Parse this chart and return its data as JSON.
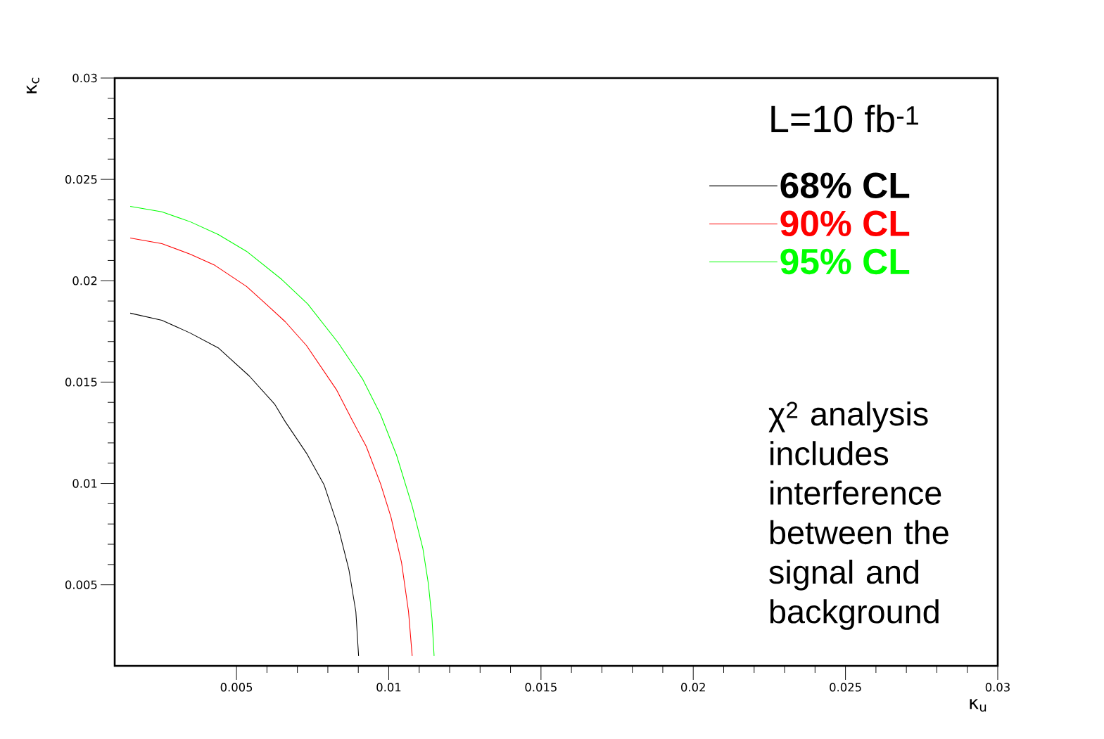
{
  "chart_data": {
    "type": "line",
    "xlabel": "κ$_{u}$",
    "ylabel": "κ$_{c}$",
    "xlim": [
      0.001,
      0.03
    ],
    "ylim": [
      0.001,
      0.03
    ],
    "xticks": [
      0.005,
      0.01,
      0.015,
      0.02,
      0.025,
      0.03
    ],
    "yticks": [
      0.005,
      0.01,
      0.015,
      0.02,
      0.025,
      0.03
    ],
    "legend": "top right",
    "marker": "none",
    "line_style": "solid",
    "annotations": [
      "L=10 fb$^{-1}$",
      "χ$^{2}$ analysis includes interference between the signal and background"
    ],
    "series": [
      {
        "name": "68% CL",
        "color": "#000000",
        "x": [
          0.00151,
          0.00255,
          0.00348,
          0.0044,
          0.00542,
          0.00625,
          0.0066,
          0.0073,
          0.00788,
          0.00834,
          0.00869,
          0.00892,
          0.00901
        ],
        "values": [
          0.0184,
          0.01805,
          0.01742,
          0.01669,
          0.0153,
          0.01392,
          0.01305,
          0.01149,
          0.00992,
          0.00784,
          0.00576,
          0.00367,
          0.00149
        ]
      },
      {
        "name": "90% CL",
        "color": "#ff0000",
        "x": [
          0.00151,
          0.00255,
          0.00348,
          0.00429,
          0.00533,
          0.00602,
          0.0066,
          0.0073,
          0.00829,
          0.0088,
          0.00926,
          0.00973,
          0.01007,
          0.01042,
          0.01065,
          0.01077
        ],
        "values": [
          0.02211,
          0.02183,
          0.02131,
          0.02076,
          0.01972,
          0.01878,
          0.01798,
          0.0168,
          0.01461,
          0.01312,
          0.01183,
          0.00999,
          0.00836,
          0.0061,
          0.00367,
          0.00149
        ]
      },
      {
        "name": "95% CL",
        "color": "#00ff00",
        "x": [
          0.00151,
          0.00255,
          0.00348,
          0.0044,
          0.00533,
          0.00649,
          0.00734,
          0.00834,
          0.00915,
          0.00973,
          0.01026,
          0.01077,
          0.01112,
          0.0113,
          0.01142,
          0.01149
        ],
        "values": [
          0.02367,
          0.0234,
          0.02291,
          0.02228,
          0.02145,
          0.02006,
          0.01885,
          0.01694,
          0.01513,
          0.0134,
          0.01138,
          0.00888,
          0.0068,
          0.00506,
          0.00333,
          0.00149
        ]
      }
    ]
  }
}
